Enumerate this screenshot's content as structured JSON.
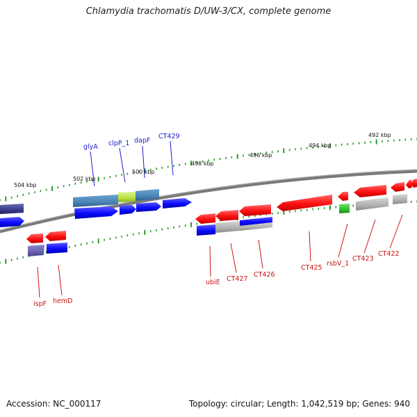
{
  "title": "Chlamydia trachomatis D/UW-3/CX, complete genome",
  "accession": "Accession: NC_000117",
  "summary": "Topology: circular; Length: 1,042,519 bp; Genes: 940",
  "colors": {
    "backbone": "#7a7a7a",
    "ruler": "#2a9a2a",
    "label_top": "#1a1acc",
    "label_bottom": "#cc1111",
    "forward": "#0b0bff",
    "reverse": "#ff1010",
    "ribbon_blue": "#4a86b8",
    "ribbon_gray": "#b8b8b8",
    "ribbon_purple": "#6a64b0",
    "ribbon_green": "#30c030",
    "ribbon_lime": "#b8e040"
  },
  "ruler_labels": [
    "504 kbp",
    "502 kbp",
    "500 kbp",
    "498 kbp",
    "496 kbp",
    "494 kbp",
    "492 kbp"
  ],
  "gene_labels_top": [
    "glyA",
    "clpP_1",
    "dapF",
    "CT429"
  ],
  "gene_labels_bottom": [
    "ispF",
    "hemD",
    "ubiE",
    "CT427",
    "CT426",
    "CT425",
    "rsbV_1",
    "CT423",
    "CT422"
  ]
}
